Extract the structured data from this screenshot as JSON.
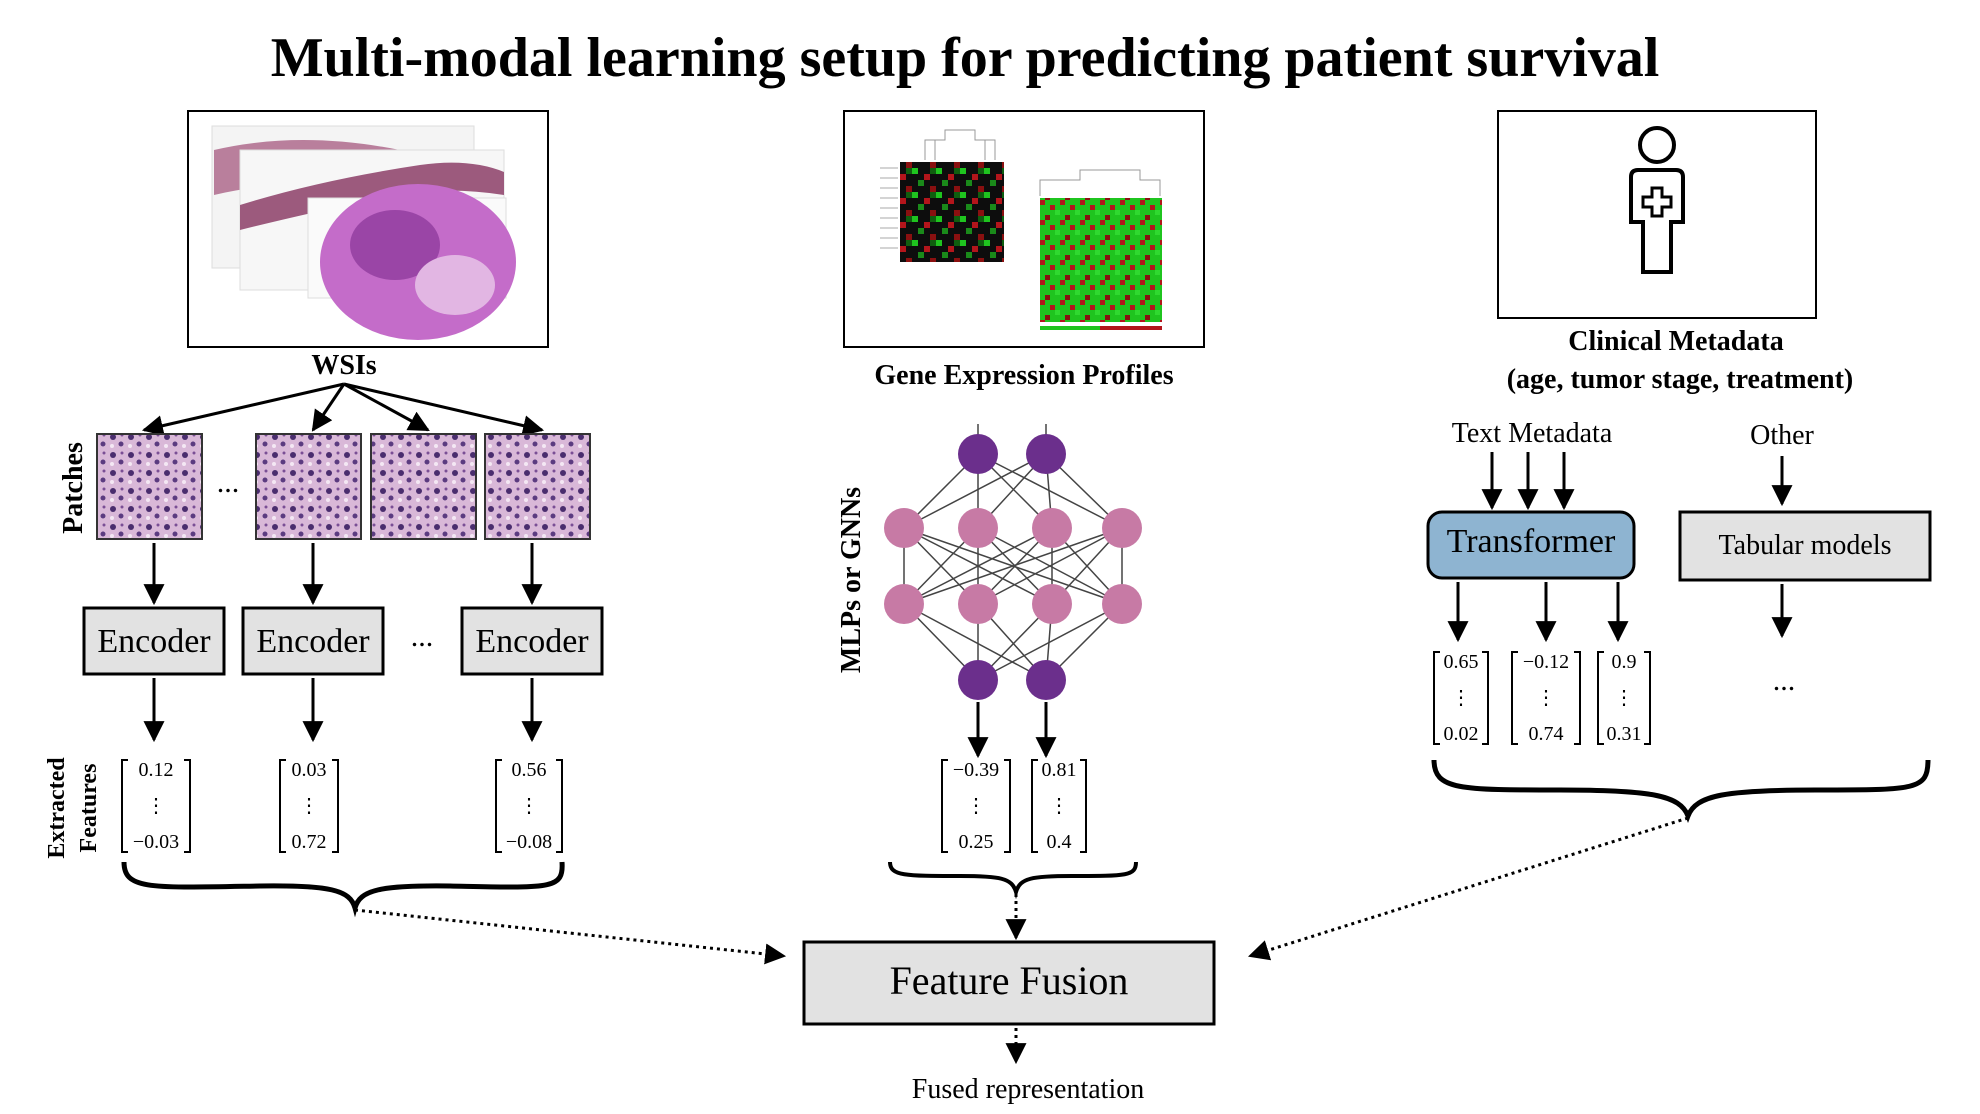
{
  "title": "Multi-modal learning setup for predicting patient survival",
  "colors": {
    "node_dark": "#6b2f8c",
    "node_light": "#c77aa5",
    "transformer_fill": "#8eb4d1",
    "box_fill": "#e2e2e2",
    "heat_red": "#b3151b",
    "heat_green": "#1fc41f",
    "tissue_pink": "#c46cc9"
  },
  "wsi": {
    "caption": "WSIs",
    "patches_label": "Patches",
    "patch_ellipsis": "...",
    "encoder_label": "Encoder",
    "encoder_ellipsis": "...",
    "features_label_line1": "Extracted",
    "features_label_line2": "Features",
    "vectors": [
      {
        "top": "0.12",
        "mid": "⋮",
        "bottom": "−0.03"
      },
      {
        "top": "0.03",
        "mid": "⋮",
        "bottom": "0.72"
      },
      {
        "top": "0.56",
        "mid": "⋮",
        "bottom": "−0.08"
      }
    ]
  },
  "gene": {
    "caption": "Gene Expression Profiles",
    "model_label": "MLPs or GNNs",
    "vectors": [
      {
        "top": "−0.39",
        "mid": "⋮",
        "bottom": "0.25"
      },
      {
        "top": "0.81",
        "mid": "⋮",
        "bottom": "0.4"
      }
    ]
  },
  "clinical": {
    "caption_line1": "Clinical Metadata",
    "caption_line2": "(age, tumor stage, treatment)",
    "text_label": "Text Metadata",
    "other_label": "Other",
    "transformer_label": "Transformer",
    "tabular_label": "Tabular models",
    "tabular_ellipsis": "...",
    "vectors": [
      {
        "top": "0.65",
        "mid": "⋮",
        "bottom": "0.02"
      },
      {
        "top": "−0.12",
        "mid": "⋮",
        "bottom": "0.74"
      },
      {
        "top": "0.9",
        "mid": "⋮",
        "bottom": "0.31"
      }
    ]
  },
  "fusion": {
    "label": "Feature Fusion",
    "output_label": "Fused representation"
  }
}
